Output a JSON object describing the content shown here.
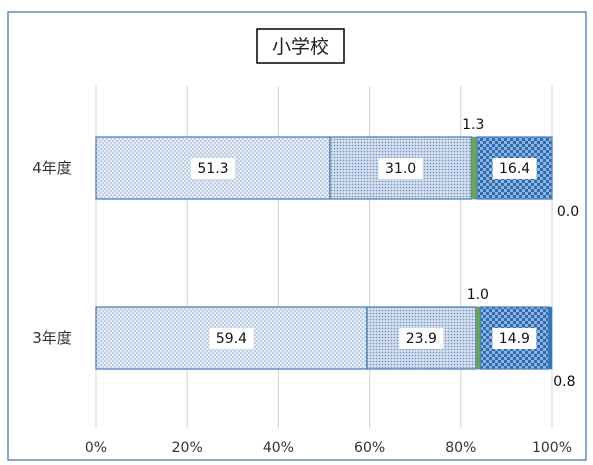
{
  "chart_data": {
    "type": "bar",
    "orientation": "horizontal",
    "stacked": "percent",
    "title": "小学校",
    "categories": [
      "4年度",
      "3年度"
    ],
    "series": [
      {
        "values": [
          51.3,
          59.4
        ],
        "color": "#dde6f2",
        "pattern": "fine-dots"
      },
      {
        "values": [
          31.0,
          23.9
        ],
        "color": "#c9d8ee",
        "pattern": "dense-dots"
      },
      {
        "values": [
          1.3,
          1.0
        ],
        "color": "#6aa84f",
        "pattern": "solid"
      },
      {
        "values": [
          16.4,
          14.9
        ],
        "color": "#5b9bd5",
        "pattern": "checker"
      },
      {
        "values": [
          0.0,
          0.8
        ],
        "color": "#2e75b6",
        "pattern": "solid"
      }
    ],
    "data_labels": {
      "4年度": [
        "51.3",
        "31.0",
        "1.3",
        "16.4",
        "0.0"
      ],
      "3年度": [
        "59.4",
        "23.9",
        "1.0",
        "14.9",
        "0.8"
      ]
    },
    "xaxis": {
      "ticks": [
        "0%",
        "20%",
        "40%",
        "60%",
        "80%",
        "100%"
      ],
      "range": [
        0,
        100
      ]
    },
    "grid": true,
    "legend": "none",
    "colors": {
      "frame": "#5b8bc7",
      "bar_border": "#4f81bd",
      "grid": "#d9d9d9"
    }
  }
}
